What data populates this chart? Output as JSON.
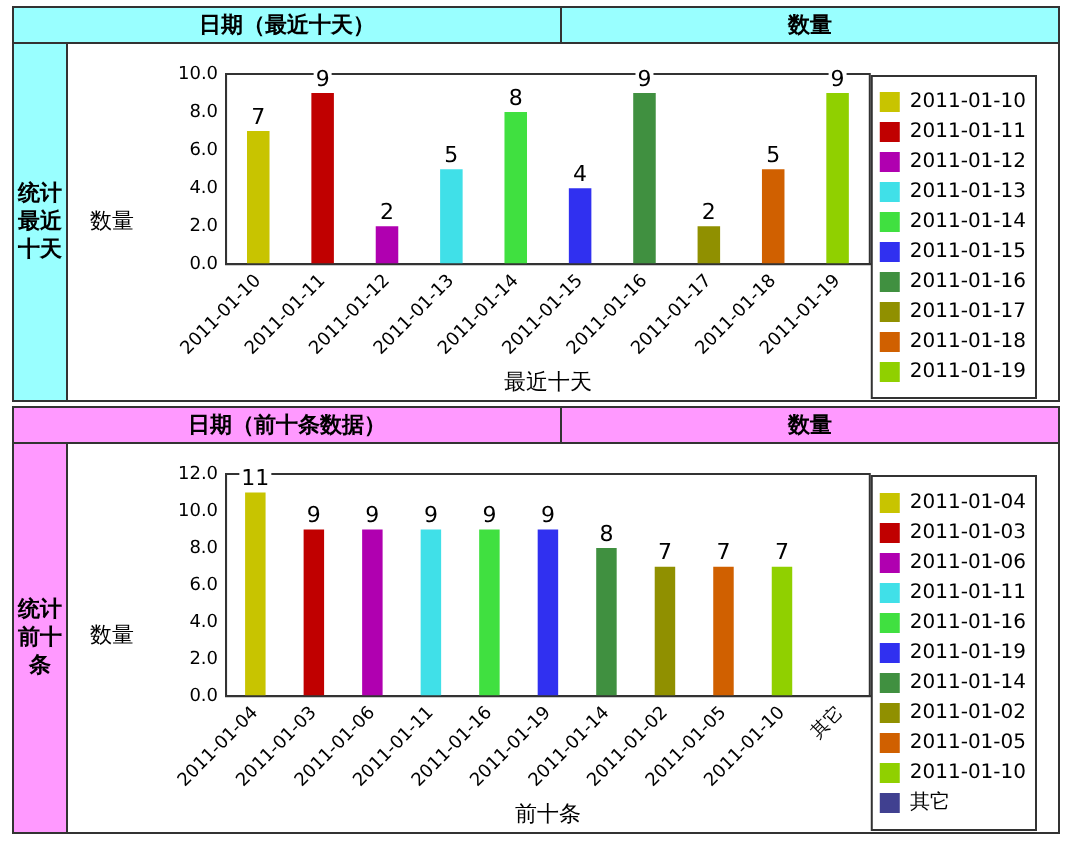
{
  "chart_data": [
    {
      "type": "bar",
      "annotations": [
        "日期（最近十天）",
        "数量",
        "统计最近十天"
      ],
      "xlabel": "最近十天",
      "ylabel": "数量",
      "categories": [
        "2011-01-10",
        "2011-01-11",
        "2011-01-12",
        "2011-01-13",
        "2011-01-14",
        "2011-01-15",
        "2011-01-16",
        "2011-01-17",
        "2011-01-18",
        "2011-01-19"
      ],
      "series": [
        {
          "name": "2011-01-10",
          "color": "#c8c400",
          "values": [
            7,
            null,
            null,
            null,
            null,
            null,
            null,
            null,
            null,
            null
          ]
        },
        {
          "name": "2011-01-11",
          "color": "#c00000",
          "values": [
            null,
            9,
            null,
            null,
            null,
            null,
            null,
            null,
            null,
            null
          ]
        },
        {
          "name": "2011-01-12",
          "color": "#b000b0",
          "values": [
            null,
            null,
            2,
            null,
            null,
            null,
            null,
            null,
            null,
            null
          ]
        },
        {
          "name": "2011-01-13",
          "color": "#40e0e8",
          "values": [
            null,
            null,
            null,
            5,
            null,
            null,
            null,
            null,
            null,
            null
          ]
        },
        {
          "name": "2011-01-14",
          "color": "#40e040",
          "values": [
            null,
            null,
            null,
            null,
            8,
            null,
            null,
            null,
            null,
            null
          ]
        },
        {
          "name": "2011-01-15",
          "color": "#3030f0",
          "values": [
            null,
            null,
            null,
            null,
            null,
            4,
            null,
            null,
            null,
            null
          ]
        },
        {
          "name": "2011-01-16",
          "color": "#409040",
          "values": [
            null,
            null,
            null,
            null,
            null,
            null,
            9,
            null,
            null,
            null
          ]
        },
        {
          "name": "2011-01-17",
          "color": "#909000",
          "values": [
            null,
            null,
            null,
            null,
            null,
            null,
            null,
            2,
            null,
            null
          ]
        },
        {
          "name": "2011-01-18",
          "color": "#d06000",
          "values": [
            null,
            null,
            null,
            null,
            null,
            null,
            null,
            null,
            5,
            null
          ]
        },
        {
          "name": "2011-01-19",
          "color": "#90d000",
          "values": [
            null,
            null,
            null,
            null,
            null,
            null,
            null,
            null,
            null,
            9
          ]
        }
      ],
      "ylim": [
        0,
        10
      ],
      "yticks": [
        {
          "value": 0,
          "label": "0.0"
        },
        {
          "value": 2,
          "label": "2.0"
        },
        {
          "value": 4,
          "label": "4.0"
        },
        {
          "value": 6,
          "label": "6.0"
        },
        {
          "value": 8,
          "label": "8.0"
        },
        {
          "value": 10,
          "label": "10.0"
        }
      ],
      "data_labels": true,
      "legend": "right",
      "grid": false
    },
    {
      "type": "bar",
      "annotations": [
        "日期（前十条数据）",
        "数量",
        "统计前十条"
      ],
      "xlabel": "前十条",
      "ylabel": "数量",
      "categories": [
        "2011-01-04",
        "2011-01-03",
        "2011-01-06",
        "2011-01-11",
        "2011-01-16",
        "2011-01-19",
        "2011-01-14",
        "2011-01-02",
        "2011-01-05",
        "2011-01-10",
        "其它"
      ],
      "series": [
        {
          "name": "2011-01-04",
          "color": "#c8c400",
          "values": [
            11,
            null,
            null,
            null,
            null,
            null,
            null,
            null,
            null,
            null,
            null
          ]
        },
        {
          "name": "2011-01-03",
          "color": "#c00000",
          "values": [
            null,
            9,
            null,
            null,
            null,
            null,
            null,
            null,
            null,
            null,
            null
          ]
        },
        {
          "name": "2011-01-06",
          "color": "#b000b0",
          "values": [
            null,
            null,
            9,
            null,
            null,
            null,
            null,
            null,
            null,
            null,
            null
          ]
        },
        {
          "name": "2011-01-11",
          "color": "#40e0e8",
          "values": [
            null,
            null,
            null,
            9,
            null,
            null,
            null,
            null,
            null,
            null,
            null
          ]
        },
        {
          "name": "2011-01-16",
          "color": "#40e040",
          "values": [
            null,
            null,
            null,
            null,
            9,
            null,
            null,
            null,
            null,
            null,
            null
          ]
        },
        {
          "name": "2011-01-19",
          "color": "#3030f0",
          "values": [
            null,
            null,
            null,
            null,
            null,
            9,
            null,
            null,
            null,
            null,
            null
          ]
        },
        {
          "name": "2011-01-14",
          "color": "#409040",
          "values": [
            null,
            null,
            null,
            null,
            null,
            null,
            8,
            null,
            null,
            null,
            null
          ]
        },
        {
          "name": "2011-01-02",
          "color": "#909000",
          "values": [
            null,
            null,
            null,
            null,
            null,
            null,
            null,
            7,
            null,
            null,
            null
          ]
        },
        {
          "name": "2011-01-05",
          "color": "#d06000",
          "values": [
            null,
            null,
            null,
            null,
            null,
            null,
            null,
            null,
            7,
            null,
            null
          ]
        },
        {
          "name": "2011-01-10",
          "color": "#90d000",
          "values": [
            null,
            null,
            null,
            null,
            null,
            null,
            null,
            null,
            null,
            7,
            null
          ]
        },
        {
          "name": "其它",
          "color": "#404090",
          "values": [
            null,
            null,
            null,
            null,
            null,
            null,
            null,
            null,
            null,
            null,
            null
          ]
        }
      ],
      "ylim": [
        0,
        12
      ],
      "yticks": [
        {
          "value": 0,
          "label": "0.0"
        },
        {
          "value": 2,
          "label": "2.0"
        },
        {
          "value": 4,
          "label": "4.0"
        },
        {
          "value": 6,
          "label": "6.0"
        },
        {
          "value": 8,
          "label": "8.0"
        },
        {
          "value": 10,
          "label": "10.0"
        },
        {
          "value": 12,
          "label": "12.0"
        }
      ],
      "data_labels": true,
      "legend": "right",
      "grid": false
    }
  ]
}
